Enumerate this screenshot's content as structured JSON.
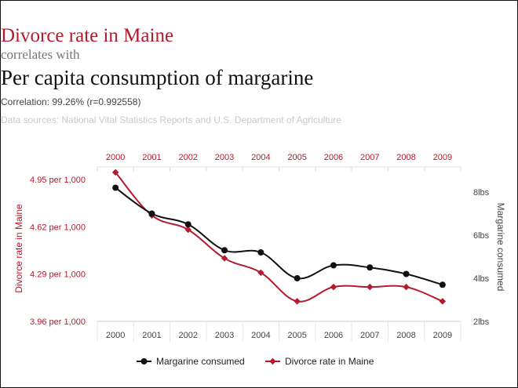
{
  "header": {
    "title_line1": "Divorce rate in Maine",
    "title_line2": "correlates with",
    "title_line3": "Per capita consumption of margarine",
    "correlation": "Correlation: 99.26% (r=0.992558)",
    "sources": "Data sources: National Vital Statistics Reports and U.S. Department of Agriculture"
  },
  "colors": {
    "margarine": "#111111",
    "divorce": "#b31b2f",
    "grid": "#e6e6e6",
    "axis_text": "#444444"
  },
  "chart_data": {
    "type": "line",
    "x": [
      "2000",
      "2001",
      "2002",
      "2003",
      "2004",
      "2005",
      "2006",
      "2007",
      "2008",
      "2009"
    ],
    "series": [
      {
        "name": "Margarine consumed",
        "axis": "right",
        "values": [
          8.2,
          7.0,
          6.5,
          5.3,
          5.2,
          4.0,
          4.6,
          4.5,
          4.2,
          3.7
        ]
      },
      {
        "name": "Divorce rate in Maine",
        "axis": "left",
        "values": [
          5.0,
          4.7,
          4.6,
          4.4,
          4.3,
          4.1,
          4.2,
          4.2,
          4.2,
          4.1
        ]
      }
    ],
    "ylabel_left": "Divorce rate in Maine",
    "ylabel_right": "Margarine consumed",
    "left_ticks": [
      "4.95 per 1,000",
      "4.62 per 1,000",
      "4.29 per 1,000",
      "3.96 per 1,000"
    ],
    "left_tick_values": [
      4.95,
      4.62,
      4.29,
      3.96
    ],
    "right_ticks": [
      "8lbs",
      "6lbs",
      "4lbs",
      "2lbs"
    ],
    "right_tick_values": [
      8,
      6,
      4,
      2
    ],
    "ylim_left": [
      3.96,
      4.95
    ],
    "ylim_right": [
      2,
      8
    ],
    "legend": "bottom-center",
    "grid": true
  }
}
